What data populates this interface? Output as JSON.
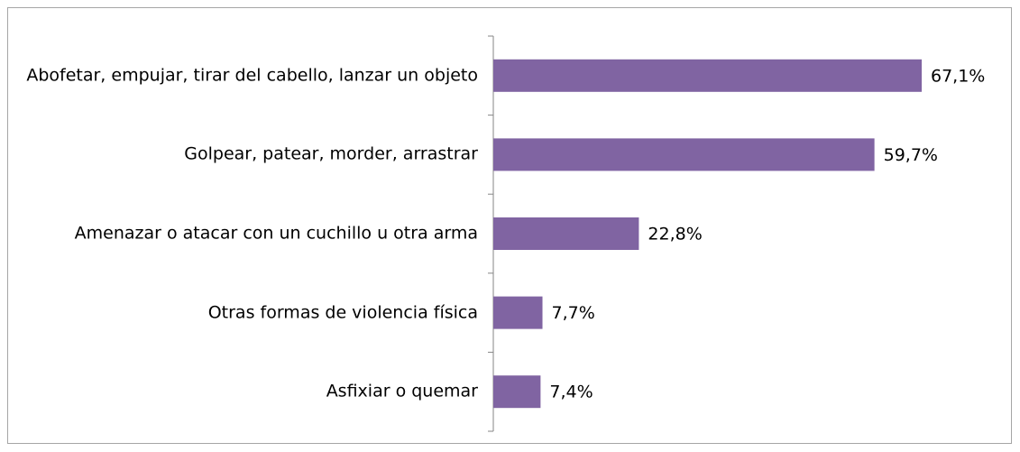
{
  "chart_data": {
    "type": "bar",
    "orientation": "horizontal",
    "categories": [
      "Abofetar, empujar, tirar del cabello, lanzar un objeto",
      "Golpear, patear, morder, arrastrar",
      "Amenazar o atacar con un cuchillo u otra arma",
      "Otras formas de violencia física",
      "Asfixiar o quemar"
    ],
    "values": [
      67.1,
      59.7,
      22.8,
      7.7,
      7.4
    ],
    "value_labels": [
      "67,1%",
      "59,7%",
      "22,8%",
      "7,7%",
      "7,4%"
    ],
    "color": "#8064a2"
  }
}
